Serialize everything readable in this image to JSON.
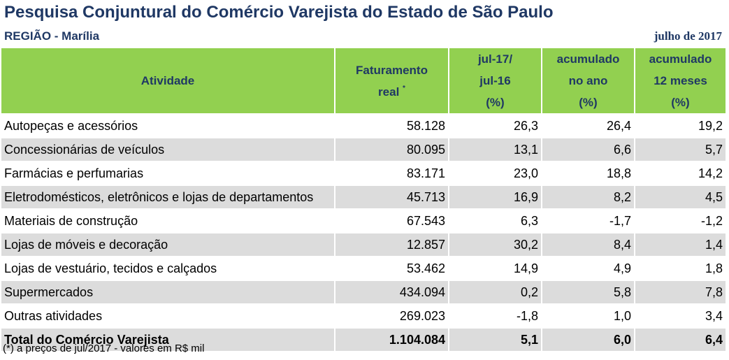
{
  "header": {
    "title": "Pesquisa Conjuntural do Comércio Varejista do Estado de São Paulo",
    "region": "REGIÃO - Marília",
    "date": "julho  de 2017"
  },
  "table": {
    "columns": {
      "activity": "Atividade",
      "revenue_line1": "Faturamento",
      "revenue_line2": "real",
      "revenue_mark": "*",
      "yoy_line1": "jul-17/",
      "yoy_line2": "jul-16",
      "yoy_line3": "(%)",
      "ytd_line1": "acumulado",
      "ytd_line2": "no ano",
      "ytd_line3": "(%)",
      "m12_line1": "acumulado",
      "m12_line2": "12 meses",
      "m12_line3": "(%)"
    },
    "rows": [
      {
        "activity": "Autopeças e acessórios",
        "revenue": "58.128",
        "yoy": "26,3",
        "ytd": "26,4",
        "m12": "19,2"
      },
      {
        "activity": "Concessionárias de veículos",
        "revenue": "80.095",
        "yoy": "13,1",
        "ytd": "6,6",
        "m12": "5,7"
      },
      {
        "activity": "Farmácias e perfumarias",
        "revenue": "83.171",
        "yoy": "23,0",
        "ytd": "18,8",
        "m12": "14,2"
      },
      {
        "activity": "Eletrodomésticos, eletrônicos e lojas de departamentos",
        "revenue": "45.713",
        "yoy": "16,9",
        "ytd": "8,2",
        "m12": "4,5"
      },
      {
        "activity": "Materiais de construção",
        "revenue": "67.543",
        "yoy": "6,3",
        "ytd": "-1,7",
        "m12": "-1,2"
      },
      {
        "activity": "Lojas de móveis e decoração",
        "revenue": "12.857",
        "yoy": "30,2",
        "ytd": "8,4",
        "m12": "1,4"
      },
      {
        "activity": "Lojas de vestuário, tecidos e calçados",
        "revenue": "53.462",
        "yoy": "14,9",
        "ytd": "4,9",
        "m12": "1,8"
      },
      {
        "activity": "Supermercados",
        "revenue": "434.094",
        "yoy": "0,2",
        "ytd": "5,8",
        "m12": "7,8"
      },
      {
        "activity": "Outras atividades",
        "revenue": "269.023",
        "yoy": "-1,8",
        "ytd": "1,0",
        "m12": "3,4"
      }
    ],
    "total": {
      "activity": "Total do Comércio Varejista",
      "revenue": "1.104.084",
      "yoy": "5,1",
      "ytd": "6,0",
      "m12": "6,4"
    }
  },
  "footnote": "(*) a preços de jul/2017 - valores em R$ mil",
  "colors": {
    "header_green": "#92d050",
    "title_navy": "#1f3864",
    "row_gray": "#dcdcdc"
  }
}
